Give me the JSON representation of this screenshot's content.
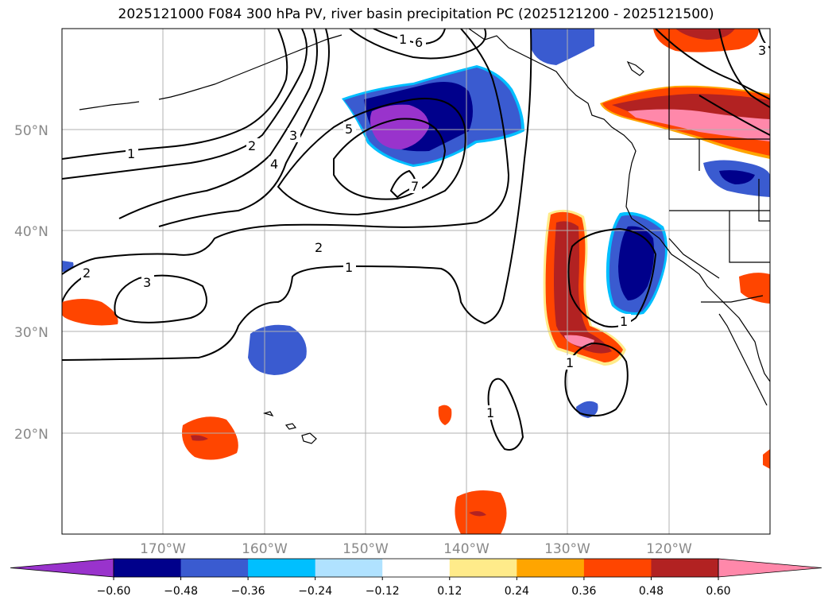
{
  "title": "2025121000 F084 300 hPa PV, river basin precipitation PC (2025121200 - 2025121500)",
  "map": {
    "lat_ticks": [
      "50°N",
      "40°N",
      "30°N",
      "20°N"
    ],
    "lon_ticks": [
      "170°W",
      "160°W",
      "150°W",
      "140°W",
      "130°W",
      "120°W"
    ],
    "pv_contour_labels": [
      "1",
      "2",
      "3",
      "4",
      "5",
      "6",
      "7",
      "1",
      "2",
      "3",
      "1",
      "1",
      "1",
      "2",
      "1",
      "3"
    ]
  },
  "colorbar": {
    "colors": [
      "#9933cc",
      "#00008b",
      "#3a5bd0",
      "#00bfff",
      "#b0e2ff",
      "#ffffff",
      "#ffeb8a",
      "#ffa500",
      "#ff4500",
      "#b22222",
      "#ff88aa"
    ],
    "tick_labels": [
      "−0.60",
      "−0.48",
      "−0.36",
      "−0.24",
      "−0.12",
      "0.12",
      "0.24",
      "0.36",
      "0.48",
      "0.60"
    ]
  }
}
